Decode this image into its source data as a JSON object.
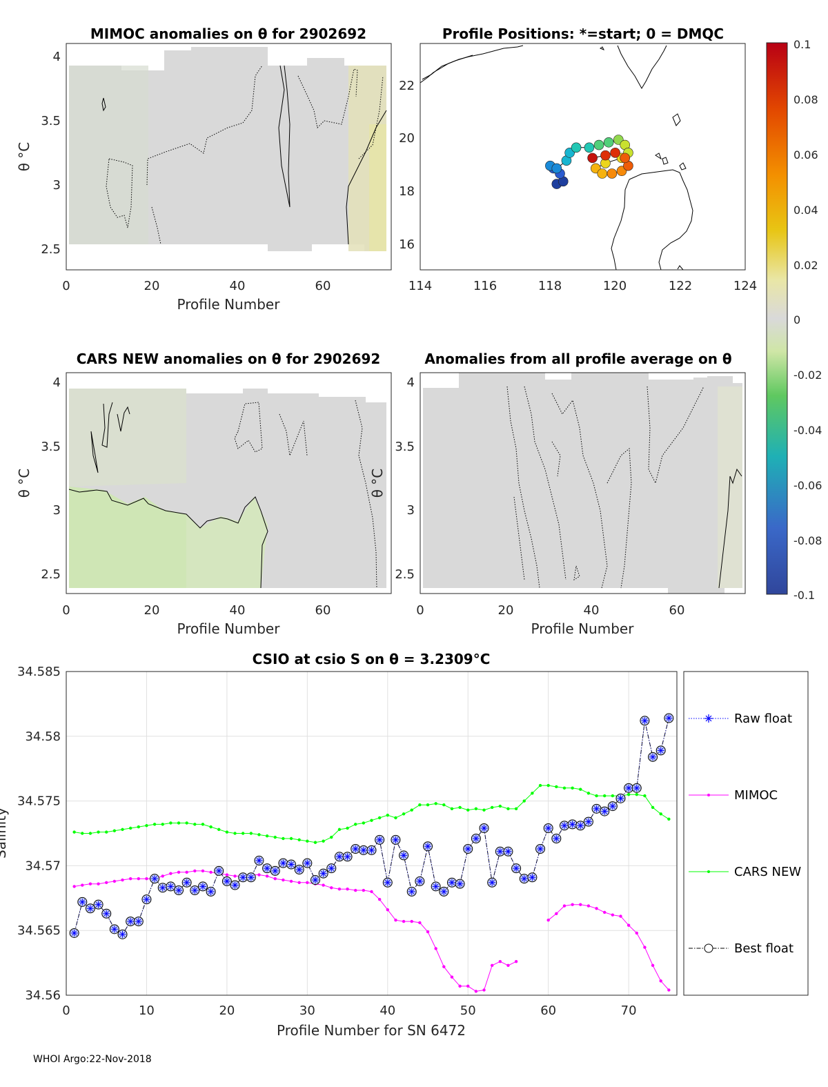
{
  "footer": "WHOI Argo:22-Nov-2018",
  "chart_data": [
    {
      "type": "heatmap",
      "title": "MIMOC anomalies on θ  for 2902692",
      "xlabel": "Profile Number",
      "ylabel": "θ °C",
      "xlim": [
        0,
        76
      ],
      "ylim": [
        2.35,
        4.07
      ],
      "xticks": [
        0,
        20,
        40,
        60
      ],
      "xtick_labels": [
        "0",
        "20",
        "40",
        "60"
      ],
      "yticks": [
        2.5,
        3,
        3.5,
        4
      ],
      "ytick_labels": [
        "2.5",
        "3",
        "3.5",
        "4"
      ],
      "field_range": [
        2.53,
        3.93
      ],
      "dominant_anomaly": 0.0,
      "high_anomaly_region": {
        "profiles": [
          68,
          75
        ],
        "anomaly": 0.015
      }
    },
    {
      "type": "scatter",
      "title": "Profile Positions: *=start; 0 = DMQC",
      "xlabel": "",
      "ylabel": "",
      "xlim": [
        114,
        124
      ],
      "ylim": [
        15,
        23.7
      ],
      "xticks": [
        114,
        116,
        118,
        120,
        122,
        124
      ],
      "xtick_labels": [
        "114",
        "116",
        "118",
        "120",
        "122",
        "124"
      ],
      "yticks": [
        16,
        18,
        20,
        22
      ],
      "ytick_labels": [
        "16",
        "18",
        "20",
        "22"
      ],
      "track_lon": [
        118.2,
        118.4,
        118.3,
        118.1,
        118.0,
        118.2,
        118.5,
        118.6,
        118.8,
        119.2,
        119.5,
        119.8,
        120.1,
        120.3,
        120.4,
        120.2,
        119.7,
        119.4,
        119.6,
        119.9,
        120.2,
        120.4,
        120.3,
        120.0,
        119.7,
        119.3
      ],
      "track_lat": [
        18.3,
        18.4,
        18.7,
        18.9,
        19.0,
        18.9,
        19.2,
        19.5,
        19.7,
        19.7,
        19.8,
        19.9,
        20.0,
        19.8,
        19.5,
        19.3,
        19.1,
        18.9,
        18.7,
        18.7,
        18.8,
        19.0,
        19.3,
        19.5,
        19.4,
        19.3
      ],
      "colorbar": {
        "ticks": [
          0.1,
          0.08,
          0.06,
          0.04,
          0.02,
          0,
          -0.02,
          -0.04,
          -0.06,
          -0.08,
          -0.1
        ],
        "tick_labels": [
          "0.1",
          "0.08",
          "0.06",
          "0.04",
          "0.02",
          "0",
          "-0.02",
          "-0.04",
          "-0.06",
          "-0.08",
          "-0.1"
        ]
      }
    },
    {
      "type": "heatmap",
      "title": "CARS NEW anomalies on θ for 2902692",
      "xlabel": "Profile Number",
      "ylabel": "θ °C",
      "xlim": [
        0,
        76
      ],
      "ylim": [
        2.33,
        4.07
      ],
      "xticks": [
        0,
        20,
        40,
        60
      ],
      "xtick_labels": [
        "0",
        "20",
        "40",
        "60"
      ],
      "yticks": [
        2.5,
        3,
        3.5,
        4
      ],
      "ytick_labels": [
        "2.5",
        "3",
        "3.5",
        "4"
      ],
      "lower_region_top": 3.12,
      "lower_region_anomaly": -0.015,
      "upper_region_anomaly": -0.005
    },
    {
      "type": "heatmap",
      "title": "Anomalies from all profile average on θ",
      "xlabel": "Profile Number",
      "ylabel": "θ °C",
      "xlim": [
        0,
        76
      ],
      "ylim": [
        2.33,
        4.07
      ],
      "xticks": [
        0,
        20,
        40,
        60
      ],
      "xtick_labels": [
        "0",
        "20",
        "40",
        "60"
      ],
      "yticks": [
        2.5,
        3,
        3.5,
        4
      ],
      "ytick_labels": [
        "2.5",
        "3",
        "3.5",
        "4"
      ],
      "dominant_anomaly": 0.0
    },
    {
      "type": "line",
      "title": "CSIO at csio S on θ = 3.2309",
      "title_unit": "°C",
      "xlabel": "Profile Number for SN 6472",
      "ylabel": "Salinity",
      "xlim": [
        0,
        76
      ],
      "ylim": [
        34.56,
        34.585
      ],
      "xticks": [
        0,
        10,
        20,
        30,
        40,
        50,
        60,
        70
      ],
      "xtick_labels": [
        "0",
        "10",
        "20",
        "30",
        "40",
        "50",
        "60",
        "70"
      ],
      "yticks": [
        34.56,
        34.565,
        34.57,
        34.575,
        34.58,
        34.585
      ],
      "ytick_labels": [
        "34.56",
        "34.565",
        "34.57",
        "34.575",
        "34.58",
        "34.585"
      ],
      "grid": true,
      "legend_position": "right",
      "series": [
        {
          "name": "Raw float",
          "color": "#0000ff",
          "x": [
            1,
            2,
            3,
            4,
            5,
            6,
            7,
            8,
            9,
            10,
            11,
            12,
            13,
            14,
            15,
            16,
            17,
            18,
            19,
            20,
            21,
            22,
            23,
            24,
            25,
            26,
            27,
            28,
            29,
            30,
            31,
            32,
            33,
            34,
            35,
            36,
            37,
            38,
            39,
            40,
            41,
            42,
            43,
            44,
            45,
            46,
            47,
            48,
            49,
            50,
            51,
            52,
            53,
            54,
            55,
            56,
            57,
            58,
            59,
            60,
            61,
            62,
            63,
            64,
            65,
            66,
            67,
            68,
            69,
            70,
            71,
            72,
            73,
            74,
            75
          ],
          "y": [
            34.5648,
            34.5672,
            34.5667,
            34.567,
            34.5663,
            34.5651,
            34.5647,
            34.5657,
            34.5657,
            34.5674,
            34.569,
            34.5683,
            34.5684,
            34.5681,
            34.5687,
            34.5681,
            34.5684,
            34.568,
            34.5696,
            34.5688,
            34.5685,
            34.5691,
            34.5691,
            34.5704,
            34.5698,
            34.5696,
            34.5702,
            34.5701,
            34.5697,
            34.5702,
            34.5689,
            34.5694,
            34.5698,
            34.5707,
            34.5707,
            34.5713,
            34.5712,
            34.5712,
            34.572,
            34.5687,
            34.572,
            34.5708,
            34.568,
            34.5688,
            34.5715,
            34.5684,
            34.568,
            34.5687,
            34.5686,
            34.5713,
            34.5721,
            34.5729,
            34.5687,
            34.5711,
            34.5711,
            34.5698,
            34.569,
            34.5691,
            34.5713,
            34.5729,
            34.5721,
            34.5731,
            34.5732,
            34.5731,
            34.5734,
            34.5744,
            34.5742,
            34.5746,
            34.5752,
            34.576,
            34.576,
            34.5812,
            34.5784,
            34.5789,
            34.5814
          ]
        },
        {
          "name": "MIMOC",
          "color": "#ff00ff",
          "x": [
            1,
            2,
            3,
            4,
            5,
            6,
            7,
            8,
            9,
            10,
            11,
            12,
            13,
            14,
            15,
            16,
            17,
            18,
            19,
            20,
            21,
            22,
            23,
            24,
            25,
            26,
            27,
            28,
            29,
            30,
            31,
            32,
            33,
            34,
            35,
            36,
            37,
            38,
            39,
            40,
            41,
            42,
            43,
            44,
            45,
            46,
            47,
            48,
            49,
            50,
            51,
            52,
            53,
            54,
            55,
            56,
            null,
            60,
            61,
            62,
            63,
            64,
            65,
            66,
            67,
            68,
            69,
            70,
            71,
            72,
            73,
            74,
            75
          ],
          "y": [
            34.5684,
            34.5685,
            34.5686,
            34.5686,
            34.5687,
            34.5688,
            34.5689,
            34.569,
            34.569,
            34.569,
            34.569,
            34.5692,
            34.5694,
            34.5695,
            34.5695,
            34.5696,
            34.5696,
            34.5695,
            34.5694,
            34.5693,
            34.5692,
            34.5692,
            34.5693,
            34.5693,
            34.5692,
            34.569,
            34.5689,
            34.5688,
            34.5687,
            34.5687,
            34.5686,
            34.5685,
            34.5683,
            34.5682,
            34.5682,
            34.5681,
            34.5681,
            34.568,
            34.5674,
            34.5666,
            34.5658,
            34.5657,
            34.5657,
            34.5656,
            34.5649,
            34.5636,
            34.5622,
            34.5614,
            34.5607,
            34.5607,
            34.5603,
            34.5604,
            34.5623,
            34.5626,
            34.5623,
            34.5626,
            null,
            34.5658,
            34.5663,
            34.5669,
            34.567,
            34.567,
            34.5669,
            34.5667,
            34.5664,
            34.5662,
            34.5661,
            34.5654,
            34.5648,
            34.5637,
            34.5623,
            34.5611,
            34.5604
          ]
        },
        {
          "name": "CARS NEW",
          "color": "#00ff00",
          "x": [
            1,
            2,
            3,
            4,
            5,
            6,
            7,
            8,
            9,
            10,
            11,
            12,
            13,
            14,
            15,
            16,
            17,
            18,
            19,
            20,
            21,
            22,
            23,
            24,
            25,
            26,
            27,
            28,
            29,
            30,
            31,
            32,
            33,
            34,
            35,
            36,
            37,
            38,
            39,
            40,
            41,
            42,
            43,
            44,
            45,
            46,
            47,
            48,
            49,
            50,
            51,
            52,
            53,
            54,
            55,
            56,
            57,
            58,
            59,
            60,
            61,
            62,
            63,
            64,
            65,
            66,
            67,
            68,
            69,
            70,
            71,
            72,
            73,
            74,
            75
          ],
          "y": [
            34.5726,
            34.5725,
            34.5725,
            34.5726,
            34.5726,
            34.5727,
            34.5728,
            34.5729,
            34.573,
            34.5731,
            34.5732,
            34.5732,
            34.5733,
            34.5733,
            34.5733,
            34.5732,
            34.5732,
            34.573,
            34.5728,
            34.5726,
            34.5725,
            34.5725,
            34.5725,
            34.5724,
            34.5723,
            34.5722,
            34.5721,
            34.5721,
            34.572,
            34.5719,
            34.5718,
            34.5719,
            34.5722,
            34.5728,
            34.5729,
            34.5732,
            34.5733,
            34.5735,
            34.5737,
            34.5739,
            34.5737,
            34.574,
            34.5743,
            34.5747,
            34.5747,
            34.5748,
            34.5747,
            34.5744,
            34.5745,
            34.5743,
            34.5744,
            34.5743,
            34.5745,
            34.5746,
            34.5744,
            34.5744,
            34.575,
            34.5756,
            34.5762,
            34.5762,
            34.5761,
            34.576,
            34.576,
            34.5759,
            34.5756,
            34.5754,
            34.5754,
            34.5754,
            34.5754,
            34.5755,
            34.5755,
            34.5754,
            34.5745,
            34.574,
            34.5736
          ]
        },
        {
          "name": "Best float",
          "color": "#000000",
          "same_values_as": "Raw float"
        }
      ]
    }
  ]
}
